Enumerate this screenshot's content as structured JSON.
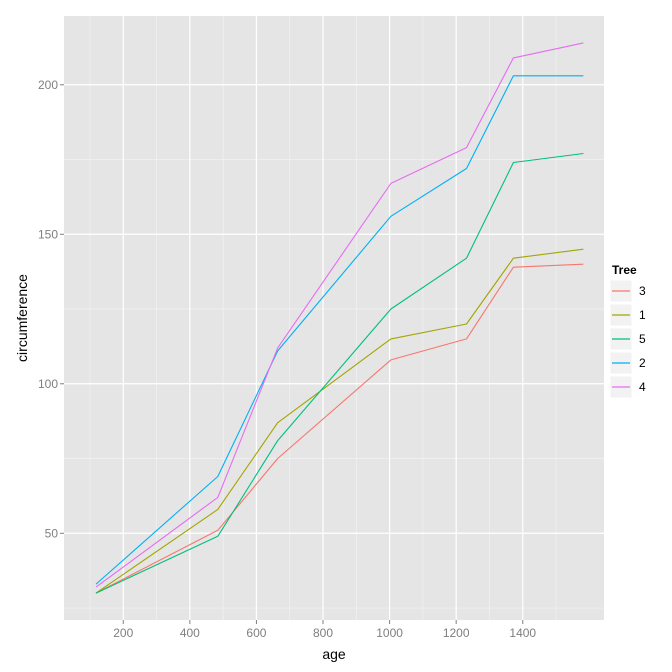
{
  "chart_data": {
    "type": "line",
    "xlabel": "age",
    "ylabel": "circumference",
    "xlim": [
      22,
      1644
    ],
    "ylim": [
      21,
      223
    ],
    "x_ticks": [
      200,
      400,
      600,
      800,
      1000,
      1200,
      1400
    ],
    "y_ticks": [
      50,
      100,
      150,
      200
    ],
    "grid": true,
    "legend": {
      "title": "Tree",
      "position": "right"
    },
    "x": [
      118,
      484,
      664,
      1004,
      1231,
      1372,
      1582
    ],
    "series": [
      {
        "name": "3",
        "color": "#F8766D",
        "values": [
          30,
          51,
          75,
          108,
          115,
          139,
          140
        ]
      },
      {
        "name": "1",
        "color": "#A3A500",
        "values": [
          30,
          58,
          87,
          115,
          120,
          142,
          145
        ]
      },
      {
        "name": "5",
        "color": "#00BF7D",
        "values": [
          30,
          49,
          81,
          125,
          142,
          174,
          177
        ]
      },
      {
        "name": "2",
        "color": "#00B0F6",
        "values": [
          33,
          69,
          111,
          156,
          172,
          203,
          203
        ]
      },
      {
        "name": "4",
        "color": "#E76BF3",
        "values": [
          32,
          62,
          112,
          167,
          179,
          209,
          214
        ]
      }
    ]
  }
}
